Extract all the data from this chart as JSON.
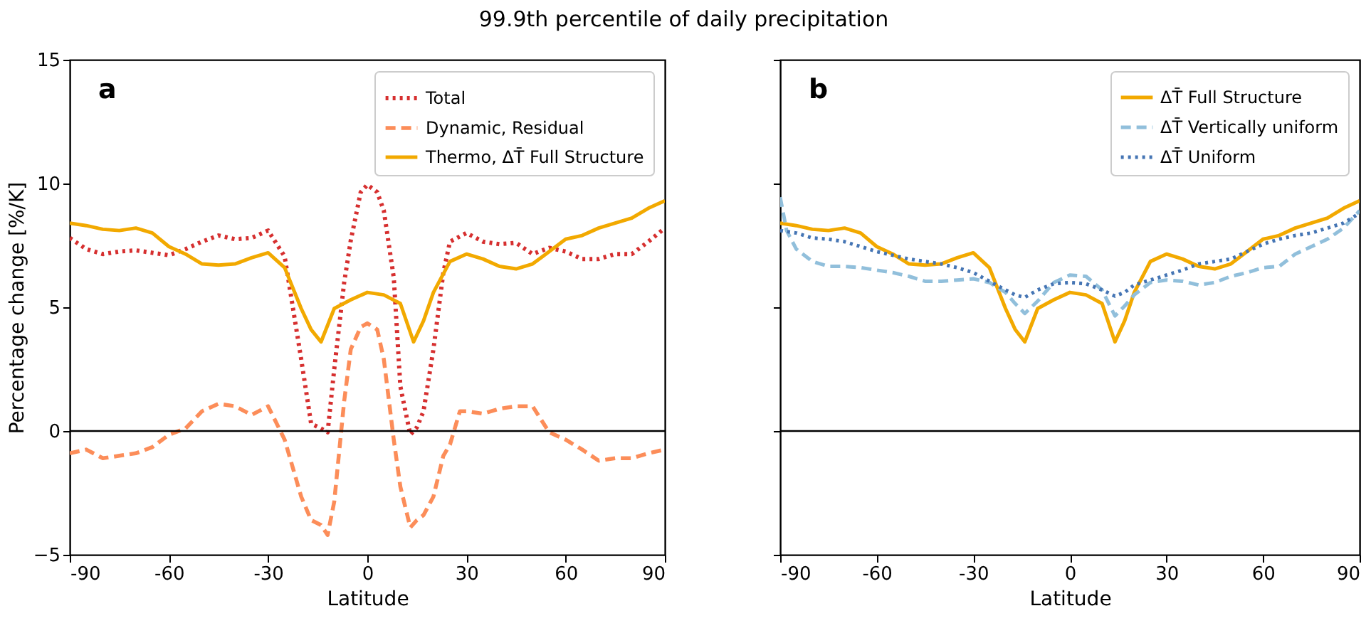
{
  "chart_data": [
    {
      "type": "line",
      "title": "99.9th percentile of daily precipitation",
      "xlabel": "Latitude",
      "ylabel": "Percentage change [%/K]",
      "annotations": [
        "a"
      ],
      "xlim": [
        -90,
        90
      ],
      "xticks": [
        -90,
        -60,
        -30,
        0,
        30,
        60,
        90
      ],
      "ylim": [
        -5,
        15
      ],
      "yticks": [
        -5,
        0,
        5,
        10,
        15
      ],
      "grid": false,
      "legend": "top right",
      "ref_lines": [
        {
          "axis": "y",
          "value": 0,
          "color": "#000000"
        }
      ],
      "series": [
        {
          "name": "Total",
          "color": "#d62f2f",
          "line_style": "dotted",
          "x": [
            -90,
            -85,
            -80,
            -75,
            -70,
            -65,
            -60,
            -55,
            -50,
            -45,
            -40,
            -35,
            -30,
            -25,
            -20,
            -17,
            -14,
            -12,
            -10,
            -7,
            -5,
            -2,
            0,
            3,
            5,
            8,
            10,
            13,
            15,
            17,
            20,
            23,
            25,
            30,
            35,
            40,
            45,
            50,
            55,
            60,
            65,
            70,
            75,
            80,
            85,
            90
          ],
          "values": [
            7.8,
            7.35,
            7.15,
            7.25,
            7.3,
            7.2,
            7.1,
            7.35,
            7.65,
            7.9,
            7.75,
            7.8,
            8.1,
            7.05,
            2.9,
            0.3,
            0.1,
            -0.05,
            2.5,
            6.0,
            7.7,
            9.65,
            9.95,
            9.65,
            8.9,
            6.2,
            1.8,
            -0.15,
            0.15,
            0.8,
            3.3,
            6.4,
            7.65,
            8.0,
            7.65,
            7.55,
            7.6,
            7.15,
            7.4,
            7.25,
            6.95,
            6.95,
            7.15,
            7.15,
            7.65,
            8.2
          ]
        },
        {
          "name": "Dynamic, Residual",
          "color": "#fc8d59",
          "line_style": "dashed",
          "x": [
            -90,
            -85,
            -80,
            -75,
            -70,
            -65,
            -60,
            -55,
            -50,
            -45,
            -40,
            -35,
            -30,
            -25,
            -20,
            -17,
            -14,
            -12,
            -10,
            -7,
            -5,
            -2,
            0,
            3,
            5,
            8,
            10,
            13,
            15,
            17,
            20,
            23,
            25,
            28,
            30,
            35,
            40,
            45,
            50,
            55,
            60,
            65,
            70,
            75,
            80,
            85,
            90
          ],
          "values": [
            -0.9,
            -0.75,
            -1.1,
            -1.0,
            -0.9,
            -0.65,
            -0.15,
            0.1,
            0.8,
            1.1,
            1.0,
            0.65,
            1.0,
            -0.35,
            -2.65,
            -3.6,
            -3.8,
            -4.2,
            -2.85,
            1.2,
            3.3,
            4.2,
            4.35,
            4.1,
            2.9,
            -0.35,
            -2.25,
            -3.9,
            -3.6,
            -3.4,
            -2.65,
            -1.0,
            -0.55,
            0.8,
            0.8,
            0.7,
            0.9,
            1.0,
            1.0,
            -0.05,
            -0.35,
            -0.75,
            -1.2,
            -1.1,
            -1.1,
            -0.9,
            -0.75
          ]
        },
        {
          "name": "Thermo, ΔT̄ Full Structure",
          "color": "#f2a900",
          "line_style": "solid",
          "x": [
            -90,
            -85,
            -80,
            -75,
            -70,
            -65,
            -60,
            -55,
            -50,
            -45,
            -40,
            -35,
            -30,
            -25,
            -20,
            -17,
            -14,
            -10,
            -5,
            0,
            5,
            10,
            14,
            17,
            20,
            25,
            30,
            35,
            40,
            45,
            50,
            55,
            60,
            65,
            70,
            75,
            80,
            85,
            90
          ],
          "values": [
            8.4,
            8.3,
            8.15,
            8.1,
            8.2,
            8.0,
            7.45,
            7.15,
            6.75,
            6.7,
            6.75,
            7.0,
            7.2,
            6.6,
            4.95,
            4.1,
            3.6,
            4.95,
            5.3,
            5.6,
            5.5,
            5.15,
            3.6,
            4.45,
            5.6,
            6.85,
            7.15,
            6.95,
            6.65,
            6.55,
            6.75,
            7.25,
            7.75,
            7.9,
            8.2,
            8.4,
            8.6,
            9.0,
            9.3
          ]
        }
      ]
    },
    {
      "type": "line",
      "xlabel": "Latitude",
      "annotations": [
        "b"
      ],
      "tick_labels": "x",
      "xlim": [
        -90,
        90
      ],
      "xticks": [
        -90,
        -60,
        -30,
        0,
        30,
        60,
        90
      ],
      "ylim": [
        -5,
        15
      ],
      "yticks": [
        -5,
        0,
        5,
        10,
        15
      ],
      "grid": false,
      "legend": "top right",
      "ref_lines": [
        {
          "axis": "y",
          "value": 0,
          "color": "#000000"
        }
      ],
      "series": [
        {
          "name": "ΔT̄ Full Structure",
          "color": "#f2a900",
          "line_style": "solid",
          "x": [
            -90,
            -85,
            -80,
            -75,
            -70,
            -65,
            -60,
            -55,
            -50,
            -45,
            -40,
            -35,
            -30,
            -25,
            -20,
            -17,
            -14,
            -10,
            -5,
            0,
            5,
            10,
            14,
            17,
            20,
            25,
            30,
            35,
            40,
            45,
            50,
            55,
            60,
            65,
            70,
            75,
            80,
            85,
            90
          ],
          "values": [
            8.4,
            8.3,
            8.15,
            8.1,
            8.2,
            8.0,
            7.45,
            7.15,
            6.75,
            6.7,
            6.75,
            7.0,
            7.2,
            6.6,
            4.95,
            4.1,
            3.6,
            4.95,
            5.3,
            5.6,
            5.5,
            5.15,
            3.6,
            4.45,
            5.6,
            6.85,
            7.15,
            6.95,
            6.65,
            6.55,
            6.75,
            7.25,
            7.75,
            7.9,
            8.2,
            8.4,
            8.6,
            9.0,
            9.3
          ]
        },
        {
          "name": "ΔT̄ Vertically uniform",
          "color": "#91bfdb",
          "line_style": "dashed",
          "x": [
            -90,
            -88,
            -85,
            -80,
            -75,
            -70,
            -65,
            -60,
            -55,
            -50,
            -45,
            -40,
            -35,
            -30,
            -25,
            -20,
            -17,
            -14,
            -10,
            -5,
            0,
            5,
            10,
            14,
            17,
            20,
            25,
            30,
            35,
            40,
            45,
            50,
            55,
            60,
            65,
            70,
            75,
            80,
            85,
            90
          ],
          "values": [
            9.45,
            8.1,
            7.35,
            6.85,
            6.65,
            6.65,
            6.6,
            6.5,
            6.4,
            6.25,
            6.05,
            6.05,
            6.1,
            6.15,
            6.0,
            5.6,
            5.15,
            4.75,
            5.25,
            6.0,
            6.3,
            6.25,
            5.7,
            4.65,
            5.05,
            5.5,
            6.0,
            6.1,
            6.05,
            5.9,
            6.0,
            6.25,
            6.4,
            6.6,
            6.65,
            7.15,
            7.45,
            7.75,
            8.2,
            8.9
          ]
        },
        {
          "name": "ΔT̄ Uniform",
          "color": "#4575b4",
          "line_style": "dotted",
          "x": [
            -90,
            -85,
            -80,
            -75,
            -70,
            -65,
            -60,
            -55,
            -50,
            -45,
            -40,
            -35,
            -30,
            -25,
            -20,
            -17,
            -14,
            -10,
            -5,
            0,
            5,
            10,
            14,
            17,
            20,
            25,
            30,
            35,
            40,
            45,
            50,
            55,
            60,
            65,
            70,
            75,
            80,
            85,
            90
          ],
          "values": [
            8.1,
            8.0,
            7.8,
            7.75,
            7.65,
            7.45,
            7.25,
            7.1,
            6.95,
            6.85,
            6.75,
            6.6,
            6.4,
            6.05,
            5.7,
            5.5,
            5.4,
            5.7,
            5.95,
            6.0,
            5.95,
            5.7,
            5.45,
            5.6,
            5.9,
            6.1,
            6.3,
            6.5,
            6.75,
            6.85,
            6.95,
            7.25,
            7.55,
            7.75,
            7.9,
            8.0,
            8.2,
            8.4,
            8.8
          ]
        }
      ]
    }
  ]
}
